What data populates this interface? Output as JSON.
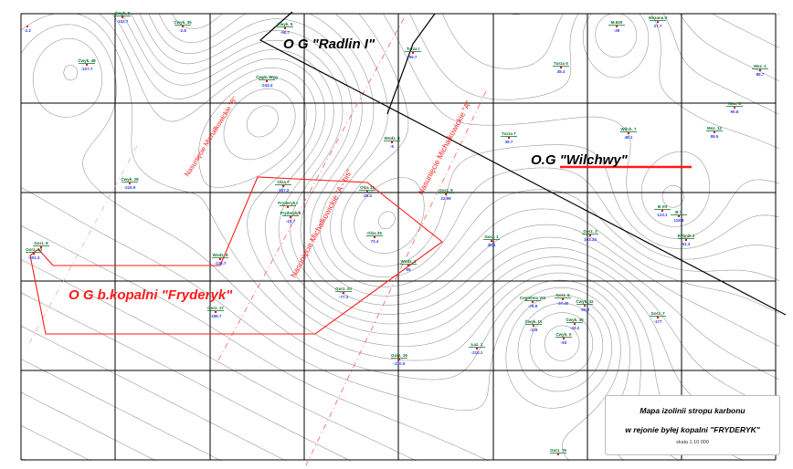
{
  "legend": {
    "title_line1": "Mapa izolinii stropu karbonu",
    "title_line2": "w rejonie byłej kopalni \"FRYDERYK\"",
    "scale": "skala 1:10 000"
  },
  "areas": [
    {
      "label": "O G \"Radlin I\"",
      "color": "#000000"
    },
    {
      "label": "O.G \"Wilchwy\"",
      "color": "#000000"
    },
    {
      "label": "O G b.kopalni \"Fryderyk\"",
      "color": "#ff1a1a"
    }
  ],
  "faults": [
    {
      "label": "Nasunięcie Michałkowickie \"B\""
    },
    {
      "label": "Nasunięcie Michałkowickie \"A\""
    },
    {
      "label": "Nasunięcie Michałkowickie \"A - bis\""
    }
  ],
  "boreholes": [
    {
      "name": "",
      "value": "-2.2"
    },
    {
      "name": "Ćwyk. 9",
      "value": "-102.7"
    },
    {
      "name": "Ćwyk. 35",
      "value": "-2.8"
    },
    {
      "name": "Ćwyk. 48",
      "value": "-227.7"
    },
    {
      "name": "Ćwyk. 5",
      "value": "-90.7"
    },
    {
      "name": "Ćwyk. Wyg",
      "value": "-243.4"
    },
    {
      "name": "Turza I",
      "value": "55.7"
    },
    {
      "name": "Turza II",
      "value": "38.4"
    },
    {
      "name": "M.620",
      "value": "-39"
    },
    {
      "name": "Mszana II",
      "value": "27.7"
    },
    {
      "name": "Msz. 1",
      "value": "88.7"
    },
    {
      "name": "Msz. 6",
      "value": "90.8"
    },
    {
      "name": "Msz. 12",
      "value": "88.5"
    },
    {
      "name": "Wilch. 7",
      "value": "48.1"
    },
    {
      "name": "Turza 7",
      "value": "39.7"
    },
    {
      "name": "Wodz. II",
      "value": "-5"
    },
    {
      "name": "Ćwyk. 28",
      "value": "-216.9"
    },
    {
      "name": "Olza 7",
      "value": "-157.2"
    },
    {
      "name": "Olza 13",
      "value": "-29.2"
    },
    {
      "name": "Gorz. 9",
      "value": "22.99"
    },
    {
      "name": "Fryderyk I",
      "value": ""
    },
    {
      "name": "Fryderyk II",
      "value": "-22.7"
    },
    {
      "name": "Olza 25",
      "value": "73.4"
    },
    {
      "name": "Gorz. 1",
      "value": "48.1"
    },
    {
      "name": "Gorz. 3",
      "value": "103.33"
    },
    {
      "name": "B VII",
      "value": "123.1"
    },
    {
      "name": "B V",
      "value": "118.8"
    },
    {
      "name": "Rybnik 2",
      "value": "51.3"
    },
    {
      "name": "Gorz. 8",
      "value": ""
    },
    {
      "name": "Gorz. 10",
      "value": "-301.3"
    },
    {
      "name": "Wodz. 8",
      "value": "-138.7"
    },
    {
      "name": "Wodz. 1",
      "value": "69"
    },
    {
      "name": "Gorz. 20",
      "value": "-77.3"
    },
    {
      "name": "Gorz. 17",
      "value": "-189.7"
    },
    {
      "name": "Cegielnia VIII",
      "value": "-79.8"
    },
    {
      "name": "Gorz. 5",
      "value": "-37.40"
    },
    {
      "name": "Ćwyk. 32",
      "value": "-90.3"
    },
    {
      "name": "Ćwyk. IX",
      "value": "-119"
    },
    {
      "name": "Ćwyk. 30",
      "value": "-43.2"
    },
    {
      "name": "Ćwyk. X",
      "value": "-93"
    },
    {
      "name": "Gorz. 7",
      "value": "-177"
    },
    {
      "name": "Łaz. 1",
      "value": "-210.1"
    },
    {
      "name": "Gorz. 16",
      "value": "-210.5"
    },
    {
      "name": "Gorz. 76",
      "value": ""
    }
  ],
  "colors": {
    "contour": "#9a9a9a",
    "grid": "#000000",
    "boundary_red": "#ff1a1a",
    "borehole_name": "#0a6b2a",
    "borehole_value": "#2b3cf0",
    "borehole_marker": "#ff0000"
  }
}
